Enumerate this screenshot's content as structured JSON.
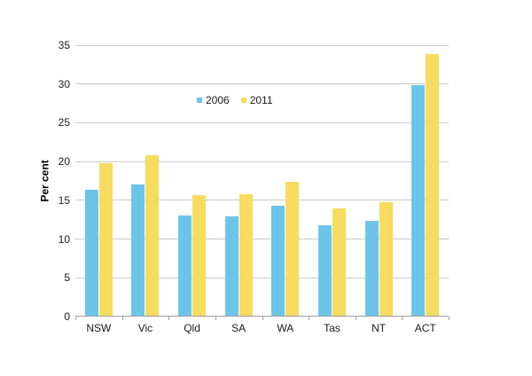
{
  "chart_data": {
    "type": "bar",
    "title": "",
    "categories": [
      "NSW",
      "Vic",
      "Qld",
      "SA",
      "WA",
      "Tas",
      "NT",
      "ACT"
    ],
    "series": [
      {
        "name": "2006",
        "color": "#6CC5E9",
        "values": [
          16.4,
          17.1,
          13.0,
          12.9,
          14.3,
          11.8,
          12.3,
          29.9
        ]
      },
      {
        "name": "2011",
        "color": "#F6DC5F",
        "values": [
          19.8,
          20.8,
          15.7,
          15.8,
          17.4,
          14.0,
          14.7,
          33.9
        ]
      }
    ],
    "xlabel": "",
    "ylabel": "Per cent",
    "ylim": [
      0,
      35
    ],
    "yticks": [
      0,
      5,
      10,
      15,
      20,
      25,
      30,
      35
    ],
    "grid": true,
    "legend_position": "inside-top-center"
  },
  "colors": {
    "background": "#FFFFFF",
    "gridline": "#C9C9C9",
    "axis": "#9E9E9E",
    "text": "#1A1A1A",
    "series_2006": "#6CC5E9",
    "series_2011": "#F6DC5F"
  }
}
